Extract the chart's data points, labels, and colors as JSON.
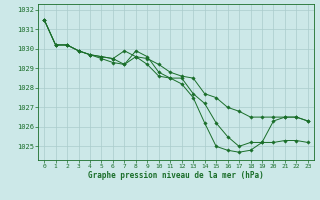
{
  "bg_color": "#cce8e8",
  "grid_color": "#aacccc",
  "line_color": "#1a6e2a",
  "marker_color": "#1a6e2a",
  "xlabel": "Graphe pression niveau de la mer (hPa)",
  "xlim": [
    -0.5,
    23.5
  ],
  "ylim": [
    1024.3,
    1032.3
  ],
  "yticks": [
    1025,
    1026,
    1027,
    1028,
    1029,
    1030,
    1031,
    1032
  ],
  "xticks": [
    0,
    1,
    2,
    3,
    4,
    5,
    6,
    7,
    8,
    9,
    10,
    11,
    12,
    13,
    14,
    15,
    16,
    17,
    18,
    19,
    20,
    21,
    22,
    23
  ],
  "series": [
    {
      "x": [
        0,
        1,
        2,
        3,
        4,
        5,
        6,
        7,
        8,
        9,
        10,
        11,
        12,
        13,
        14,
        15,
        16,
        17,
        18,
        19,
        20,
        21,
        22,
        23
      ],
      "y": [
        1031.5,
        1030.2,
        1030.2,
        1029.9,
        1029.7,
        1029.6,
        1029.5,
        1029.9,
        1029.6,
        1029.5,
        1029.2,
        1028.8,
        1028.6,
        1028.5,
        1027.7,
        1027.5,
        1027.0,
        1026.8,
        1026.5,
        1026.5,
        1026.5,
        1026.5,
        1026.5,
        1026.3
      ]
    },
    {
      "x": [
        0,
        1,
        2,
        3,
        4,
        5,
        6,
        7,
        8,
        9,
        10,
        11,
        12,
        13,
        14,
        15,
        16,
        17,
        18,
        19,
        20,
        21,
        22,
        23
      ],
      "y": [
        1031.5,
        1030.2,
        1030.2,
        1029.9,
        1029.7,
        1029.6,
        1029.5,
        1029.2,
        1029.9,
        1029.6,
        1028.8,
        1028.5,
        1028.5,
        1027.7,
        1027.2,
        1026.2,
        1025.5,
        1025.0,
        1025.2,
        1025.2,
        1026.3,
        1026.5,
        1026.5,
        1026.3
      ]
    },
    {
      "x": [
        0,
        1,
        2,
        3,
        4,
        5,
        6,
        7,
        8,
        9,
        10,
        11,
        12,
        13,
        14,
        15,
        16,
        17,
        18,
        19,
        20,
        21,
        22,
        23
      ],
      "y": [
        1031.5,
        1030.2,
        1030.2,
        1029.9,
        1029.7,
        1029.5,
        1029.3,
        1029.2,
        1029.6,
        1029.2,
        1028.6,
        1028.5,
        1028.2,
        1027.5,
        1026.2,
        1025.0,
        1024.8,
        1024.7,
        1024.8,
        1025.2,
        1025.2,
        1025.3,
        1025.3,
        1025.2
      ]
    }
  ]
}
